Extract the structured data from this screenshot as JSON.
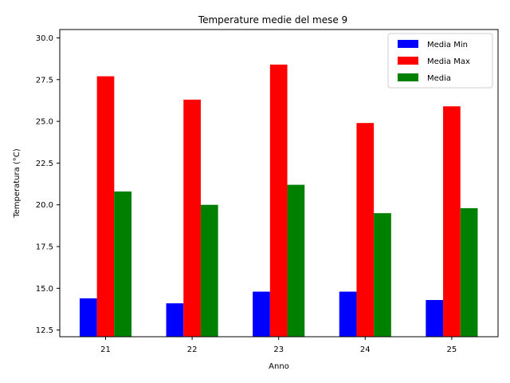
{
  "chart_data": {
    "type": "bar",
    "title": "Temperature medie del mese 9",
    "xlabel": "Anno",
    "ylabel": "Temperatura (°C)",
    "categories": [
      "21",
      "22",
      "23",
      "24",
      "25"
    ],
    "ylim": [
      12.1,
      30.5
    ],
    "yticks": [
      "12.5",
      "15.0",
      "17.5",
      "20.0",
      "22.5",
      "25.0",
      "27.5",
      "30.0"
    ],
    "legend_position": "top-right",
    "grid": false,
    "series": [
      {
        "name": "Media Min",
        "color": "#0000ff",
        "values": [
          14.4,
          14.1,
          14.8,
          14.8,
          14.3
        ]
      },
      {
        "name": "Media Max",
        "color": "#ff0000",
        "values": [
          27.7,
          26.3,
          28.4,
          24.9,
          25.9
        ]
      },
      {
        "name": "Media",
        "color": "#008000",
        "values": [
          20.8,
          20.0,
          21.2,
          19.5,
          19.8
        ]
      }
    ]
  }
}
